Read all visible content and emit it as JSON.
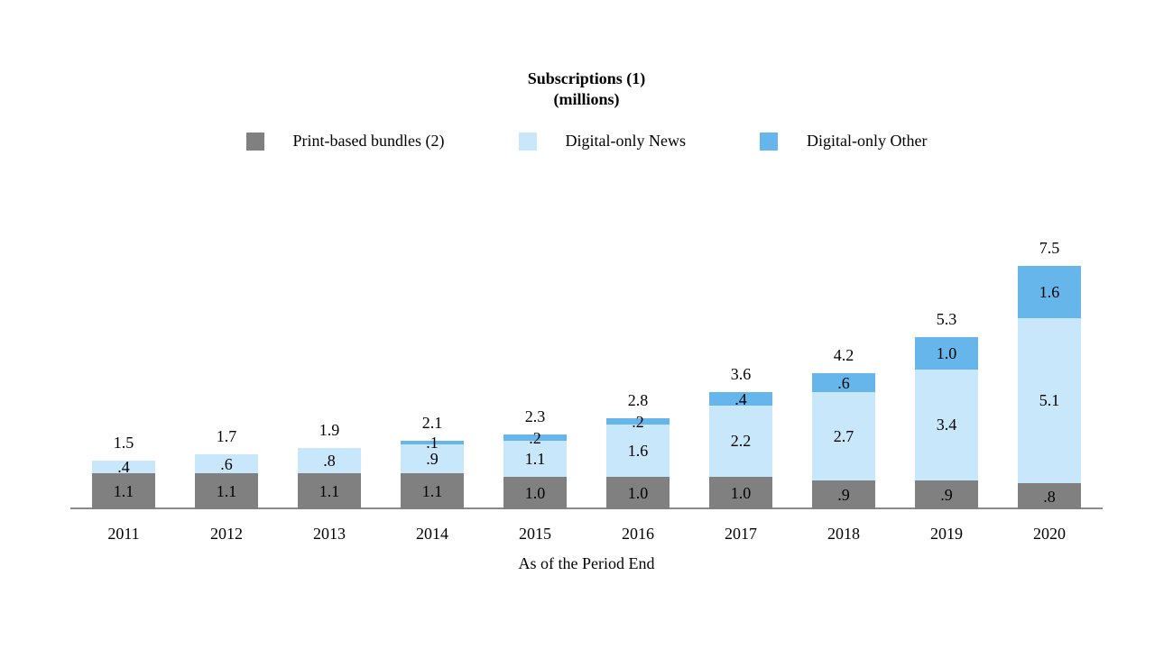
{
  "chart_data": {
    "type": "bar",
    "stacked": true,
    "title": "Subscriptions (1)",
    "subtitle": "(millions)",
    "xlabel": "As of the Period End",
    "legend_position": "top",
    "grid": false,
    "ylim": [
      0,
      8
    ],
    "categories": [
      "2011",
      "2012",
      "2013",
      "2014",
      "2015",
      "2016",
      "2017",
      "2018",
      "2019",
      "2020"
    ],
    "series": [
      {
        "name": "Print-based bundles (2)",
        "color": "#808080",
        "values": [
          1.1,
          1.1,
          1.1,
          1.1,
          1.0,
          1.0,
          1.0,
          0.9,
          0.9,
          0.8
        ],
        "labels": [
          "1.1",
          "1.1",
          "1.1",
          "1.1",
          "1.0",
          "1.0",
          "1.0",
          ".9",
          ".9",
          ".8"
        ]
      },
      {
        "name": "Digital-only News",
        "color": "#c9e7fb",
        "values": [
          0.4,
          0.6,
          0.8,
          0.9,
          1.1,
          1.6,
          2.2,
          2.7,
          3.4,
          5.1
        ],
        "labels": [
          ".4",
          ".6",
          ".8",
          ".9",
          "1.1",
          "1.6",
          "2.2",
          "2.7",
          "3.4",
          "5.1"
        ]
      },
      {
        "name": "Digital-only Other",
        "color": "#67b6eb",
        "values": [
          0,
          0,
          0,
          0.1,
          0.2,
          0.2,
          0.4,
          0.6,
          1.0,
          1.6
        ],
        "labels": [
          "",
          "",
          "",
          ".1",
          ".2",
          ".2",
          ".4",
          ".6",
          "1.0",
          "1.6"
        ]
      }
    ],
    "totals": [
      "1.5",
      "1.7",
      "1.9",
      "2.1",
      "2.3",
      "2.8",
      "3.6",
      "4.2",
      "5.3",
      "7.5"
    ]
  }
}
